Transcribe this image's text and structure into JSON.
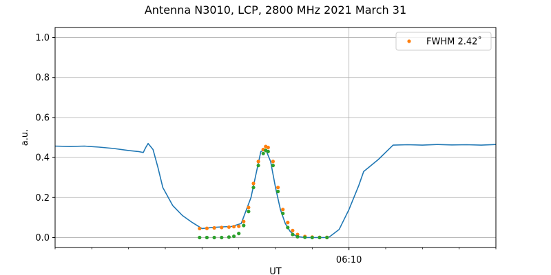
{
  "chart_data": {
    "type": "line",
    "title": "Antenna N3010, LCP, 2800 MHz 2021 March 31",
    "xlabel": "UT",
    "ylabel": "a.u.",
    "ylim": [
      -0.05,
      1.05
    ],
    "xlim": [
      "06:00:00",
      "06:15:00"
    ],
    "x_tick_label": {
      "x": "06:10:00",
      "label": "06:10"
    },
    "y_ticks": [
      0.0,
      0.2,
      0.4,
      0.6,
      0.8,
      1.0
    ],
    "y_tick_labels": [
      "0.0",
      "0.2",
      "0.4",
      "0.6",
      "0.8",
      "1.0"
    ],
    "grid": true,
    "legend_position": "top-right",
    "series": [
      {
        "color": "#1f77b4",
        "style": "line",
        "x": [
          "06:00:00",
          "06:00:30",
          "06:01:00",
          "06:01:30",
          "06:02:00",
          "06:02:30",
          "06:02:50",
          "06:03:00",
          "06:03:05",
          "06:03:10",
          "06:03:20",
          "06:03:30",
          "06:03:40",
          "06:04:00",
          "06:04:20",
          "06:04:40",
          "06:05:00",
          "06:05:20",
          "06:05:40",
          "06:06:00",
          "06:06:20",
          "06:06:40",
          "06:07:00",
          "06:07:10",
          "06:07:20",
          "06:07:30",
          "06:07:40",
          "06:07:50",
          "06:08:00",
          "06:08:10",
          "06:08:20",
          "06:08:30",
          "06:08:40",
          "06:08:50",
          "06:09:00",
          "06:09:10",
          "06:09:20",
          "06:09:40",
          "06:10:00",
          "06:10:20",
          "06:10:30",
          "06:11:00",
          "06:11:30",
          "06:12:00",
          "06:12:30",
          "06:13:00",
          "06:13:30",
          "06:14:00",
          "06:14:30",
          "06:15:00"
        ],
        "y": [
          0.457,
          0.455,
          0.457,
          0.452,
          0.445,
          0.435,
          0.43,
          0.425,
          0.45,
          0.47,
          0.44,
          0.35,
          0.25,
          0.16,
          0.11,
          0.075,
          0.045,
          0.05,
          0.053,
          0.055,
          0.07,
          0.2,
          0.43,
          0.44,
          0.38,
          0.25,
          0.14,
          0.07,
          0.03,
          0.01,
          0.003,
          0.0,
          0.0,
          0.0,
          0.0,
          0.0,
          0.003,
          0.04,
          0.14,
          0.26,
          0.33,
          0.39,
          0.462,
          0.464,
          0.462,
          0.465,
          0.463,
          0.464,
          0.462,
          0.465
        ]
      },
      {
        "name": "FWHM 2.42$^\\circ$",
        "legend_label": "FWHM 2.42˚",
        "color": "#ff7f0e",
        "style": "markers",
        "x": [
          "06:04:55",
          "06:05:10",
          "06:05:25",
          "06:05:40",
          "06:05:55",
          "06:06:05",
          "06:06:15",
          "06:06:25",
          "06:06:35",
          "06:06:45",
          "06:06:55",
          "06:07:05",
          "06:07:10",
          "06:07:15",
          "06:07:25",
          "06:07:35",
          "06:07:45",
          "06:07:55",
          "06:08:05",
          "06:08:15",
          "06:08:30",
          "06:08:45",
          "06:09:00",
          "06:09:15"
        ],
        "y": [
          0.045,
          0.046,
          0.048,
          0.05,
          0.052,
          0.054,
          0.056,
          0.08,
          0.15,
          0.27,
          0.38,
          0.44,
          0.455,
          0.45,
          0.38,
          0.25,
          0.14,
          0.075,
          0.035,
          0.015,
          0.005,
          0.002,
          0.001,
          0.001
        ]
      },
      {
        "color": "#2ca02c",
        "style": "markers",
        "x": [
          "06:04:55",
          "06:05:10",
          "06:05:25",
          "06:05:40",
          "06:05:55",
          "06:06:05",
          "06:06:15",
          "06:06:25",
          "06:06:35",
          "06:06:45",
          "06:06:55",
          "06:07:05",
          "06:07:10",
          "06:07:15",
          "06:07:25",
          "06:07:35",
          "06:07:45",
          "06:07:55",
          "06:08:05",
          "06:08:15",
          "06:08:30",
          "06:08:45",
          "06:09:00",
          "06:09:15"
        ],
        "y": [
          0.0,
          0.0,
          0.0,
          0.0,
          0.002,
          0.006,
          0.02,
          0.06,
          0.13,
          0.25,
          0.36,
          0.42,
          0.435,
          0.43,
          0.36,
          0.23,
          0.12,
          0.05,
          0.015,
          0.004,
          0.001,
          0.0,
          0.0,
          0.0
        ]
      }
    ]
  }
}
